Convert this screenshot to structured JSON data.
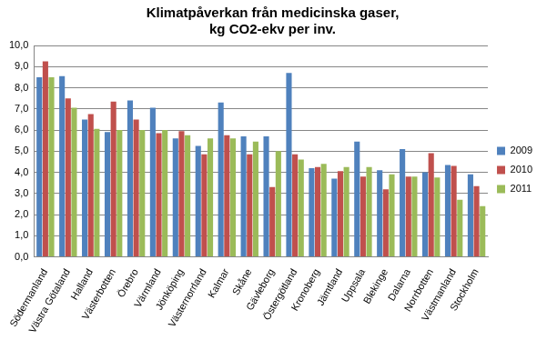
{
  "chart_data": {
    "type": "bar",
    "title": [
      "Klimatpåverkan från medicinska gaser,",
      "kg CO2-ekv per inv."
    ],
    "categories": [
      "Södermanland",
      "Västra Götaland",
      "Halland",
      "Västerbotten",
      "Örebro",
      "Värmland",
      "Jönköping",
      "Västernorrland",
      "Kalmar",
      "Skåne",
      "Gävleborg",
      "Östergötland",
      "Kronoberg",
      "Jämtland",
      "Uppsala",
      "Blekinge",
      "Dalarna",
      "Norrbotten",
      "Västmanland",
      "Stockholm"
    ],
    "series": [
      {
        "name": "2009",
        "color": "#4f81bd",
        "values": [
          8.5,
          8.55,
          6.5,
          5.9,
          7.4,
          7.05,
          5.6,
          5.25,
          7.3,
          5.7,
          5.7,
          8.7,
          4.2,
          3.7,
          5.45,
          4.1,
          5.1,
          4.0,
          4.35,
          3.9
        ]
      },
      {
        "name": "2010",
        "color": "#c0504d",
        "values": [
          9.25,
          7.5,
          6.75,
          7.35,
          6.5,
          5.85,
          5.95,
          4.85,
          5.75,
          4.85,
          3.3,
          4.85,
          4.25,
          4.05,
          3.8,
          3.2,
          3.8,
          4.9,
          4.3,
          3.35
        ]
      },
      {
        "name": "2011",
        "color": "#9bbb59",
        "values": [
          8.5,
          7.05,
          6.05,
          6.0,
          6.0,
          6.0,
          5.75,
          5.6,
          5.6,
          5.45,
          5.0,
          4.6,
          4.4,
          4.25,
          4.25,
          3.9,
          3.8,
          3.75,
          2.7,
          2.4
        ]
      }
    ],
    "ylim": [
      0,
      10
    ],
    "yticks": [
      {
        "value": 0,
        "label": "0,0"
      },
      {
        "value": 1,
        "label": "1,0"
      },
      {
        "value": 2,
        "label": "2,0"
      },
      {
        "value": 3,
        "label": "3,0"
      },
      {
        "value": 4,
        "label": "4,0"
      },
      {
        "value": 5,
        "label": "5,0"
      },
      {
        "value": 6,
        "label": "6,0"
      },
      {
        "value": 7,
        "label": "7,0"
      },
      {
        "value": 8,
        "label": "8,0"
      },
      {
        "value": 9,
        "label": "9,0"
      },
      {
        "value": 10,
        "label": "10,0"
      }
    ],
    "grid": true,
    "legend": "right"
  }
}
